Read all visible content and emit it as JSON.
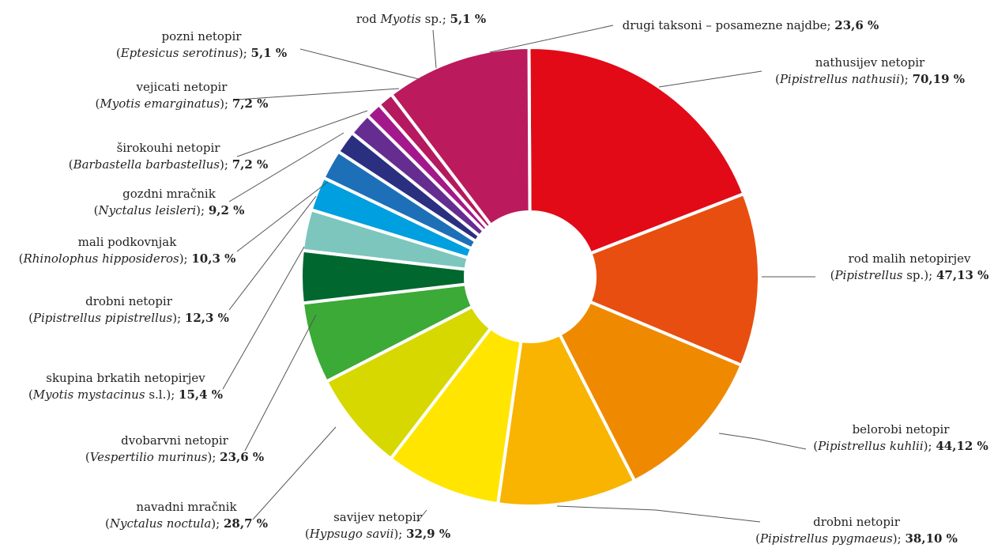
{
  "chart_data": {
    "type": "pie",
    "title": "",
    "legend": "none",
    "slices": [
      {
        "common": "nathusijev netopir",
        "latin": "Pipistrellus nathusii",
        "latin_suffix": "",
        "value": 70.19,
        "value_label": "70,19 %",
        "color": "#e20a17"
      },
      {
        "common": "rod malih netopirjev",
        "latin": "Pipistrellus",
        "latin_suffix": " sp.",
        "value": 47.13,
        "value_label": "47,13 %",
        "color": "#e84e0f"
      },
      {
        "common": "belorobi netopir",
        "latin": "Pipistrellus kuhlii",
        "latin_suffix": "",
        "value": 44.12,
        "value_label": "44,12 %",
        "color": "#ef8a00"
      },
      {
        "common": "drobni netopir",
        "latin": "Pipistrellus pygmaeus",
        "latin_suffix": "",
        "value": 38.1,
        "value_label": "38,10 %",
        "color": "#f8b400"
      },
      {
        "common": "savijev netopir",
        "latin": "Hypsugo savii",
        "latin_suffix": "",
        "value": 32.9,
        "value_label": "32,9 %",
        "color": "#ffe500"
      },
      {
        "common": "navadni mračnik",
        "latin": "Nyctalus noctula",
        "latin_suffix": "",
        "value": 28.7,
        "value_label": "28,7 %",
        "color": "#d6d800"
      },
      {
        "common": "dvobarvni netopir",
        "latin": "Vespertilio murinus",
        "latin_suffix": "",
        "value": 23.6,
        "value_label": "23,6 %",
        "color": "#3caa36"
      },
      {
        "common": "skupina brkatih netopirjev",
        "latin": "Myotis mystacinus",
        "latin_suffix": " s.l.",
        "value": 15.4,
        "value_label": "15,4 %",
        "color": "#00672f"
      },
      {
        "common": "drobni netopir",
        "latin": "Pipistrellus pipistrellus",
        "latin_suffix": "",
        "value": 12.3,
        "value_label": "12,3 %",
        "color": "#7dc6bd"
      },
      {
        "common": "mali podkovnjak",
        "latin": "Rhinolophus hipposideros",
        "latin_suffix": "",
        "value": 10.3,
        "value_label": "10,3 %",
        "color": "#009fdf"
      },
      {
        "common": "gozdni mračnik",
        "latin": "Nyctalus leisleri",
        "latin_suffix": "",
        "value": 9.2,
        "value_label": "9,2 %",
        "color": "#1d70b8"
      },
      {
        "common": "širokouhi netopir",
        "latin": "Barbastella barbastellus",
        "latin_suffix": "",
        "value": 7.2,
        "value_label": "7,2 %",
        "color": "#2a2f7f"
      },
      {
        "common": "vejicati netopir",
        "latin": "Myotis emarginatus",
        "latin_suffix": "",
        "value": 7.2,
        "value_label": "7,2 %",
        "color": "#662d91"
      },
      {
        "common": "pozni netopir",
        "latin": "Eptesicus serotinus",
        "latin_suffix": "",
        "value": 5.1,
        "value_label": "5,1 %",
        "color": "#a3198b"
      },
      {
        "common": "rod",
        "latin": "Myotis",
        "latin_suffix": " sp.",
        "value": 5.1,
        "value_label": "5,1 %",
        "color": "#b5195f"
      },
      {
        "common": "drugi taksoni – posamezne najdbe",
        "latin": "",
        "latin_suffix": "",
        "value": 23.6,
        "value_label": "23,6 %",
        "color": "#bb1a5d"
      }
    ]
  }
}
